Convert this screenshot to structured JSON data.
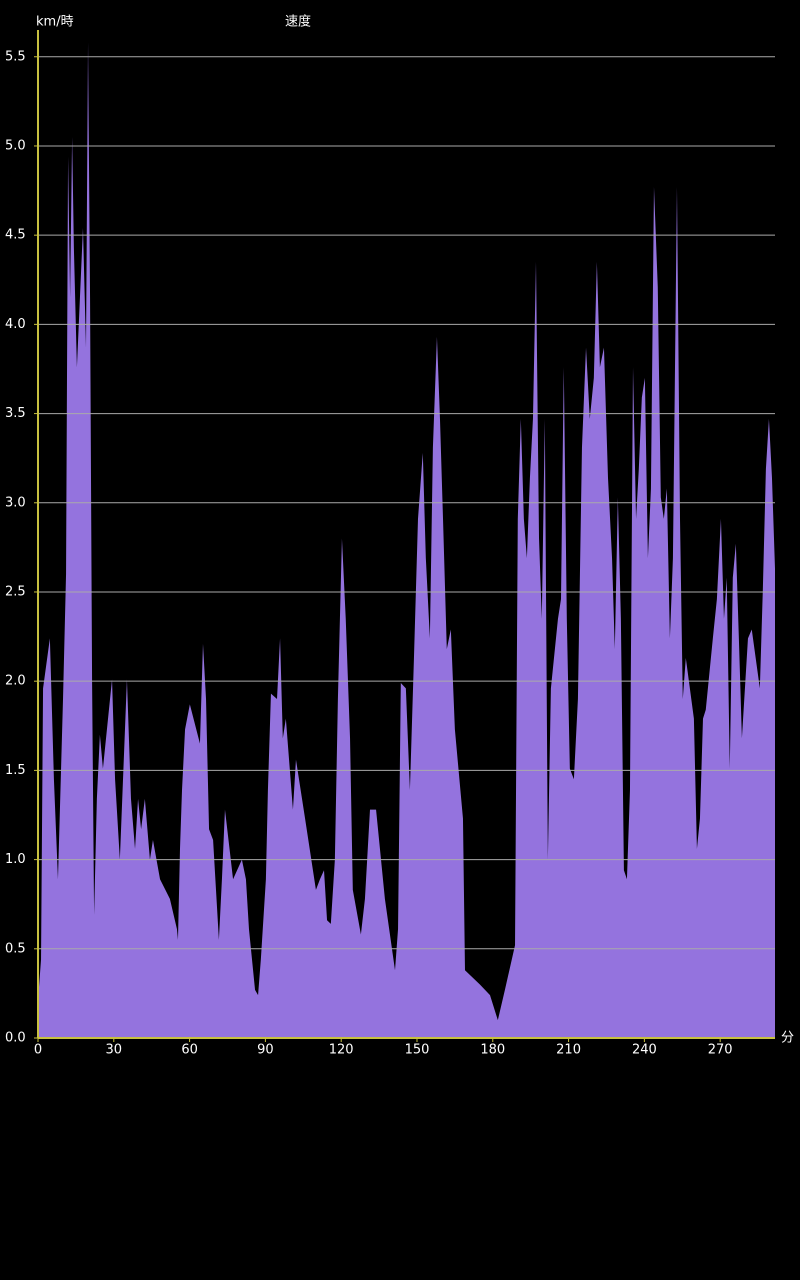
{
  "chart_data": {
    "type": "area",
    "y_unit": "km/時",
    "title": "速度",
    "x_label": "分",
    "color": "#9473de",
    "axis_color": "#c8c040",
    "grid": true,
    "xlim": [
      0,
      291.7
    ],
    "ylim": [
      0,
      5.65
    ],
    "xticks": [
      0,
      30,
      60,
      90,
      120,
      150,
      180,
      210,
      240,
      270
    ],
    "yticks": [
      {
        "value": 0,
        "label": "0.0"
      },
      0.5,
      {
        "value": 1,
        "label": "1.0"
      },
      1.5,
      {
        "value": 2,
        "label": "2.0"
      },
      2.5,
      {
        "value": 3,
        "label": "3.0"
      },
      3.5,
      {
        "value": 4,
        "label": "4.0"
      },
      4.5,
      {
        "value": 5,
        "label": "5.0"
      },
      5.5
    ],
    "x": [
      0,
      1.2,
      2.0,
      4.7,
      6.3,
      7.9,
      9.9,
      11.1,
      11.9,
      12.7,
      13.5,
      14.2,
      15.4,
      16.6,
      17.8,
      19.0,
      19.8,
      20.6,
      21.4,
      22.2,
      23.3,
      24.5,
      25.7,
      29.3,
      30.5,
      32.4,
      35.2,
      36.8,
      38.4,
      39.6,
      40.8,
      42.3,
      44.3,
      45.5,
      48.3,
      52.2,
      55.0,
      55.4,
      56.2,
      57.0,
      58.2,
      60.1,
      64.1,
      65.3,
      66.5,
      67.7,
      69.3,
      71.6,
      72.8,
      74.0,
      77.2,
      80.7,
      82.3,
      83.5,
      85.9,
      87.1,
      88.2,
      90.2,
      91.0,
      92.2,
      94.6,
      95.8,
      96.9,
      98.1,
      100.9,
      102.1,
      105.7,
      110.0,
      111.6,
      113.2,
      114.4,
      115.9,
      117.5,
      118.7,
      120.3,
      121.8,
      123.5,
      124.6,
      127.8,
      129.4,
      131.4,
      133.8,
      137.3,
      141.3,
      142.5,
      143.6,
      145.6,
      147.2,
      148.8,
      150.4,
      152.3,
      153.5,
      155.1,
      156.3,
      157.9,
      159.1,
      160.3,
      161.8,
      163.4,
      165.0,
      168.2,
      169.0,
      174.9,
      178.9,
      182.0,
      184.8,
      188.8,
      189.9,
      191.1,
      192.3,
      193.5,
      194.7,
      195.9,
      197.1,
      198.3,
      199.4,
      200.6,
      201.8,
      203.0,
      205.8,
      207.0,
      208.1,
      209.3,
      210.5,
      212.1,
      213.7,
      215.3,
      216.9,
      218.4,
      220.0,
      221.2,
      222.4,
      224.0,
      225.6,
      227.2,
      228.3,
      229.5,
      230.7,
      231.9,
      233.1,
      234.3,
      235.5,
      236.7,
      237.8,
      239.0,
      240.2,
      241.4,
      242.6,
      243.8,
      245.3,
      246.5,
      247.7,
      248.9,
      250.1,
      251.3,
      252.9,
      254.1,
      255.2,
      256.4,
      259.6,
      260.8,
      262.0,
      263.2,
      264.3,
      267.1,
      268.7,
      270.3,
      271.5,
      272.6,
      273.8,
      275.0,
      276.2,
      277.4,
      278.6,
      281.0,
      282.5,
      285.7,
      286.9,
      288.1,
      289.3,
      290.5,
      291.7
    ],
    "values": [
      0.21,
      0.44,
      1.96,
      2.24,
      1.45,
      0.89,
      1.9,
      2.6,
      4.94,
      4.15,
      5.05,
      4.43,
      3.76,
      4.15,
      4.54,
      3.87,
      5.58,
      4.15,
      2.01,
      0.69,
      1.34,
      1.7,
      1.51,
      2.01,
      1.45,
      1.0,
      2.01,
      1.34,
      1.06,
      1.34,
      1.17,
      1.34,
      1.0,
      1.11,
      0.89,
      0.78,
      0.61,
      0.55,
      1.06,
      1.39,
      1.73,
      1.87,
      1.65,
      2.21,
      1.9,
      1.17,
      1.11,
      0.55,
      0.89,
      1.28,
      0.89,
      1.0,
      0.89,
      0.61,
      0.27,
      0.24,
      0.44,
      0.89,
      1.39,
      1.93,
      1.9,
      2.24,
      1.68,
      1.79,
      1.28,
      1.56,
      1.23,
      0.83,
      0.89,
      0.94,
      0.66,
      0.64,
      1.0,
      1.9,
      2.8,
      2.35,
      1.68,
      0.83,
      0.58,
      0.78,
      1.28,
      1.28,
      0.78,
      0.38,
      0.61,
      1.99,
      1.96,
      1.39,
      2.13,
      2.91,
      3.28,
      2.69,
      2.24,
      3.31,
      3.93,
      3.47,
      2.91,
      2.18,
      2.29,
      1.73,
      1.23,
      0.38,
      0.3,
      0.24,
      0.1,
      0.27,
      0.52,
      2.91,
      3.47,
      2.91,
      2.69,
      3.14,
      3.47,
      4.35,
      2.8,
      2.35,
      3.47,
      1.0,
      1.96,
      2.35,
      2.46,
      3.76,
      2.35,
      1.51,
      1.45,
      1.9,
      3.31,
      3.87,
      3.47,
      3.7,
      4.35,
      3.76,
      3.87,
      3.14,
      2.69,
      2.18,
      3.03,
      2.35,
      0.94,
      0.89,
      1.39,
      3.76,
      2.91,
      3.19,
      3.59,
      3.7,
      2.69,
      3.08,
      4.77,
      4.21,
      3.03,
      2.91,
      3.08,
      2.24,
      2.69,
      4.77,
      2.91,
      1.9,
      2.13,
      1.79,
      1.06,
      1.23,
      1.79,
      1.84,
      2.24,
      2.46,
      2.91,
      2.35,
      2.58,
      1.51,
      2.58,
      2.77,
      2.24,
      1.68,
      2.24,
      2.29,
      1.96,
      2.52,
      3.19,
      3.47,
      3.14,
      2.63
    ]
  }
}
